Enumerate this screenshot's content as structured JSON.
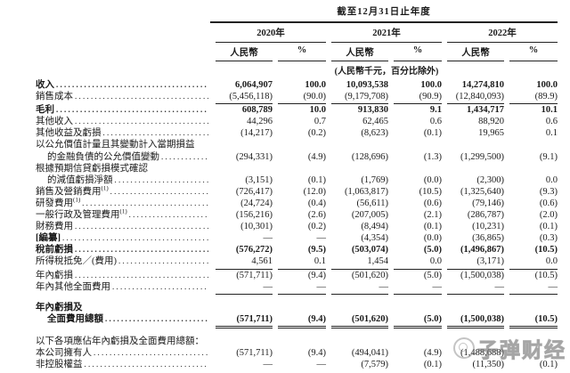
{
  "header": {
    "period_title": "截至12月31日止年度",
    "years": [
      "2020年",
      "2021年",
      "2022年"
    ],
    "currency_label": "人民幣",
    "percent_label": "%",
    "unit_note": "(人民幣千元，百分比除外)"
  },
  "colors": {
    "text": "#1a1a1a",
    "rule": "#222222",
    "watermark_gray": "#878787"
  },
  "table": {
    "rows": [
      {
        "label": "收入",
        "bold": true,
        "values": [
          "6,064,907",
          "100.0",
          "10,093,538",
          "100.0",
          "14,274,810",
          "100.0"
        ]
      },
      {
        "label": "銷售成本",
        "rule": "single",
        "values": [
          "(5,456,118)",
          "(90.0)",
          "(9,179,708)",
          "(90.9)",
          "(12,840,093)",
          "(89.9)"
        ]
      },
      {
        "label": "毛利",
        "bold": true,
        "values": [
          "608,789",
          "10.0",
          "913,830",
          "9.1",
          "1,434,717",
          "10.1"
        ]
      },
      {
        "label": "其他收入",
        "values": [
          "44,296",
          "0.7",
          "62,465",
          "0.6",
          "88,920",
          "0.6"
        ]
      },
      {
        "label": "其他收益及虧損",
        "values": [
          "(14,217)",
          "(0.2)",
          "(8,623)",
          "(0.1)",
          "19,965",
          "0.1"
        ]
      },
      {
        "label": "以公允價值計量且其變動計入當期損益",
        "leader": false,
        "values": []
      },
      {
        "label": "的金融負債的公允價值變動",
        "indent": true,
        "values": [
          "(294,331)",
          "(4.9)",
          "(128,696)",
          "(1.3)",
          "(1,299,500)",
          "(9.1)"
        ]
      },
      {
        "label": "根據預期信貸虧損模式確認",
        "leader": false,
        "values": []
      },
      {
        "label": "的減值虧損淨額",
        "indent": true,
        "values": [
          "(3,151)",
          "(0.1)",
          "(1,769)",
          "(0.0)",
          "(2,300)",
          "0.0"
        ]
      },
      {
        "label": "銷售及營銷費用",
        "sup": "(1)",
        "values": [
          "(726,417)",
          "(12.0)",
          "(1,063,817)",
          "(10.5)",
          "(1,325,640)",
          "(9.3)"
        ]
      },
      {
        "label": "研發費用",
        "sup": "(1)",
        "values": [
          "(24,724)",
          "(0.4)",
          "(56,611)",
          "(0.6)",
          "(79,146)",
          "(0.6)"
        ]
      },
      {
        "label": "一般行政及管理費用",
        "sup": "(1)",
        "values": [
          "(156,216)",
          "(2.6)",
          "(207,005)",
          "(2.1)",
          "(286,787)",
          "(2.0)"
        ]
      },
      {
        "label": "財務費用",
        "values": [
          "(10,301)",
          "(0.2)",
          "(8,494)",
          "(0.1)",
          "(10,231)",
          "(0.1)"
        ]
      },
      {
        "label": "[編纂]",
        "label_bold": true,
        "values": [
          "—",
          "—",
          "(4,354)",
          "(0.0)",
          "(36,865)",
          "(0.3)"
        ]
      },
      {
        "label": "稅前虧損",
        "bold": true,
        "values": [
          "(576,272)",
          "(9.5)",
          "(503,074)",
          "(5.0)",
          "(1,496,867)",
          "(10.5)"
        ]
      },
      {
        "label": "所得稅抵免／(費用)",
        "rule": "single",
        "values": [
          "4,561",
          "0.1",
          "1,454",
          "0.0",
          "(3,171)",
          "0.0"
        ]
      },
      {
        "label": "年內虧損",
        "values": [
          "(571,711)",
          "(9.4)",
          "(501,620)",
          "(5.0)",
          "(1,500,038)",
          "(10.5)"
        ]
      },
      {
        "label": "年內其他全面費用",
        "rule": "single",
        "values": [
          "—",
          "—",
          "—",
          "—",
          "—",
          "—"
        ]
      },
      {
        "label": "年內虧損及",
        "bold": true,
        "leader": false,
        "spacer": true,
        "values": []
      },
      {
        "label": "全面費用總額",
        "bold": true,
        "indent": true,
        "rule": "double",
        "values": [
          "(571,711)",
          "(9.4)",
          "(501,620)",
          "(5.0)",
          "(1,500,038)",
          "(10.5)"
        ]
      },
      {
        "label": "以下各項應佔年內虧損及全面費用總額：",
        "leader": false,
        "spacer": true,
        "values": []
      },
      {
        "label": "本公司擁有人",
        "values": [
          "(571,711)",
          "(9.4)",
          "(494,041)",
          "(4.9)",
          "(1,488,688)",
          ""
        ]
      },
      {
        "label": "非控股權益",
        "values": [
          "—",
          "—",
          "(7,579)",
          "(0.1)",
          "(11,350)",
          "(0.1)"
        ]
      }
    ]
  },
  "watermark": {
    "text": "子弹财经",
    "icon": "bullet-logo"
  }
}
